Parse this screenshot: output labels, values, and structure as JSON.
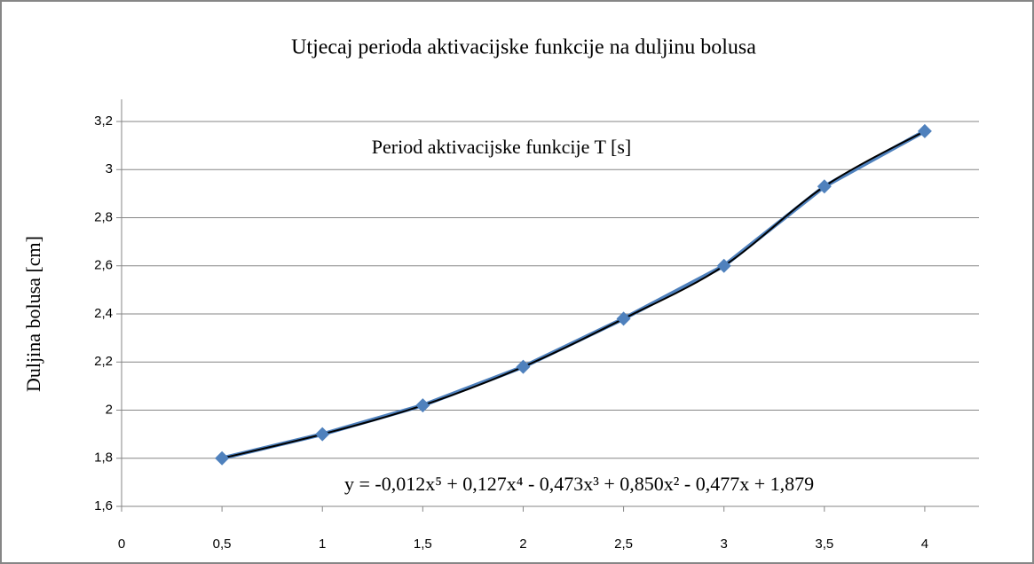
{
  "chart_data": {
    "type": "line",
    "title": "Utjecaj perioda aktivacijske funkcije na duljinu bolusa",
    "xlabel": "Period aktivacijske funkcije T [s]",
    "ylabel": "Duljina bolusa [cm]",
    "annotation": "y = -0,012x⁵ + 0,127x⁴ - 0,473x³ + 0,850x² - 0,477x + 1,879",
    "x": [
      0.5,
      1,
      1.5,
      2,
      2.5,
      3,
      3.5,
      4
    ],
    "series": [
      {
        "color": "#4f81bd",
        "values": [
          1.8,
          1.9,
          2.02,
          2.18,
          2.38,
          2.6,
          2.93,
          3.16
        ]
      }
    ],
    "trendline_color": "#000000",
    "xlim": [
      0,
      4.27
    ],
    "xticks": [
      0,
      {
        "value": 0.5,
        "label": "0,5"
      },
      1,
      {
        "value": 1.5,
        "label": "1,5"
      },
      2,
      {
        "value": 2.5,
        "label": "2,5"
      },
      3,
      {
        "value": 3.5,
        "label": "3,5"
      },
      4
    ],
    "ylim": [
      1.6,
      3.2
    ],
    "yticks": [
      {
        "value": 1.6,
        "label": "1,6"
      },
      {
        "value": 1.8,
        "label": "1,8"
      },
      2,
      {
        "value": 2.2,
        "label": "2,2"
      },
      {
        "value": 2.4,
        "label": "2,4"
      },
      {
        "value": 2.6,
        "label": "2,6"
      },
      {
        "value": 2.8,
        "label": "2,8"
      },
      3,
      {
        "value": 3.2,
        "label": "3,2"
      }
    ],
    "grid": true
  }
}
